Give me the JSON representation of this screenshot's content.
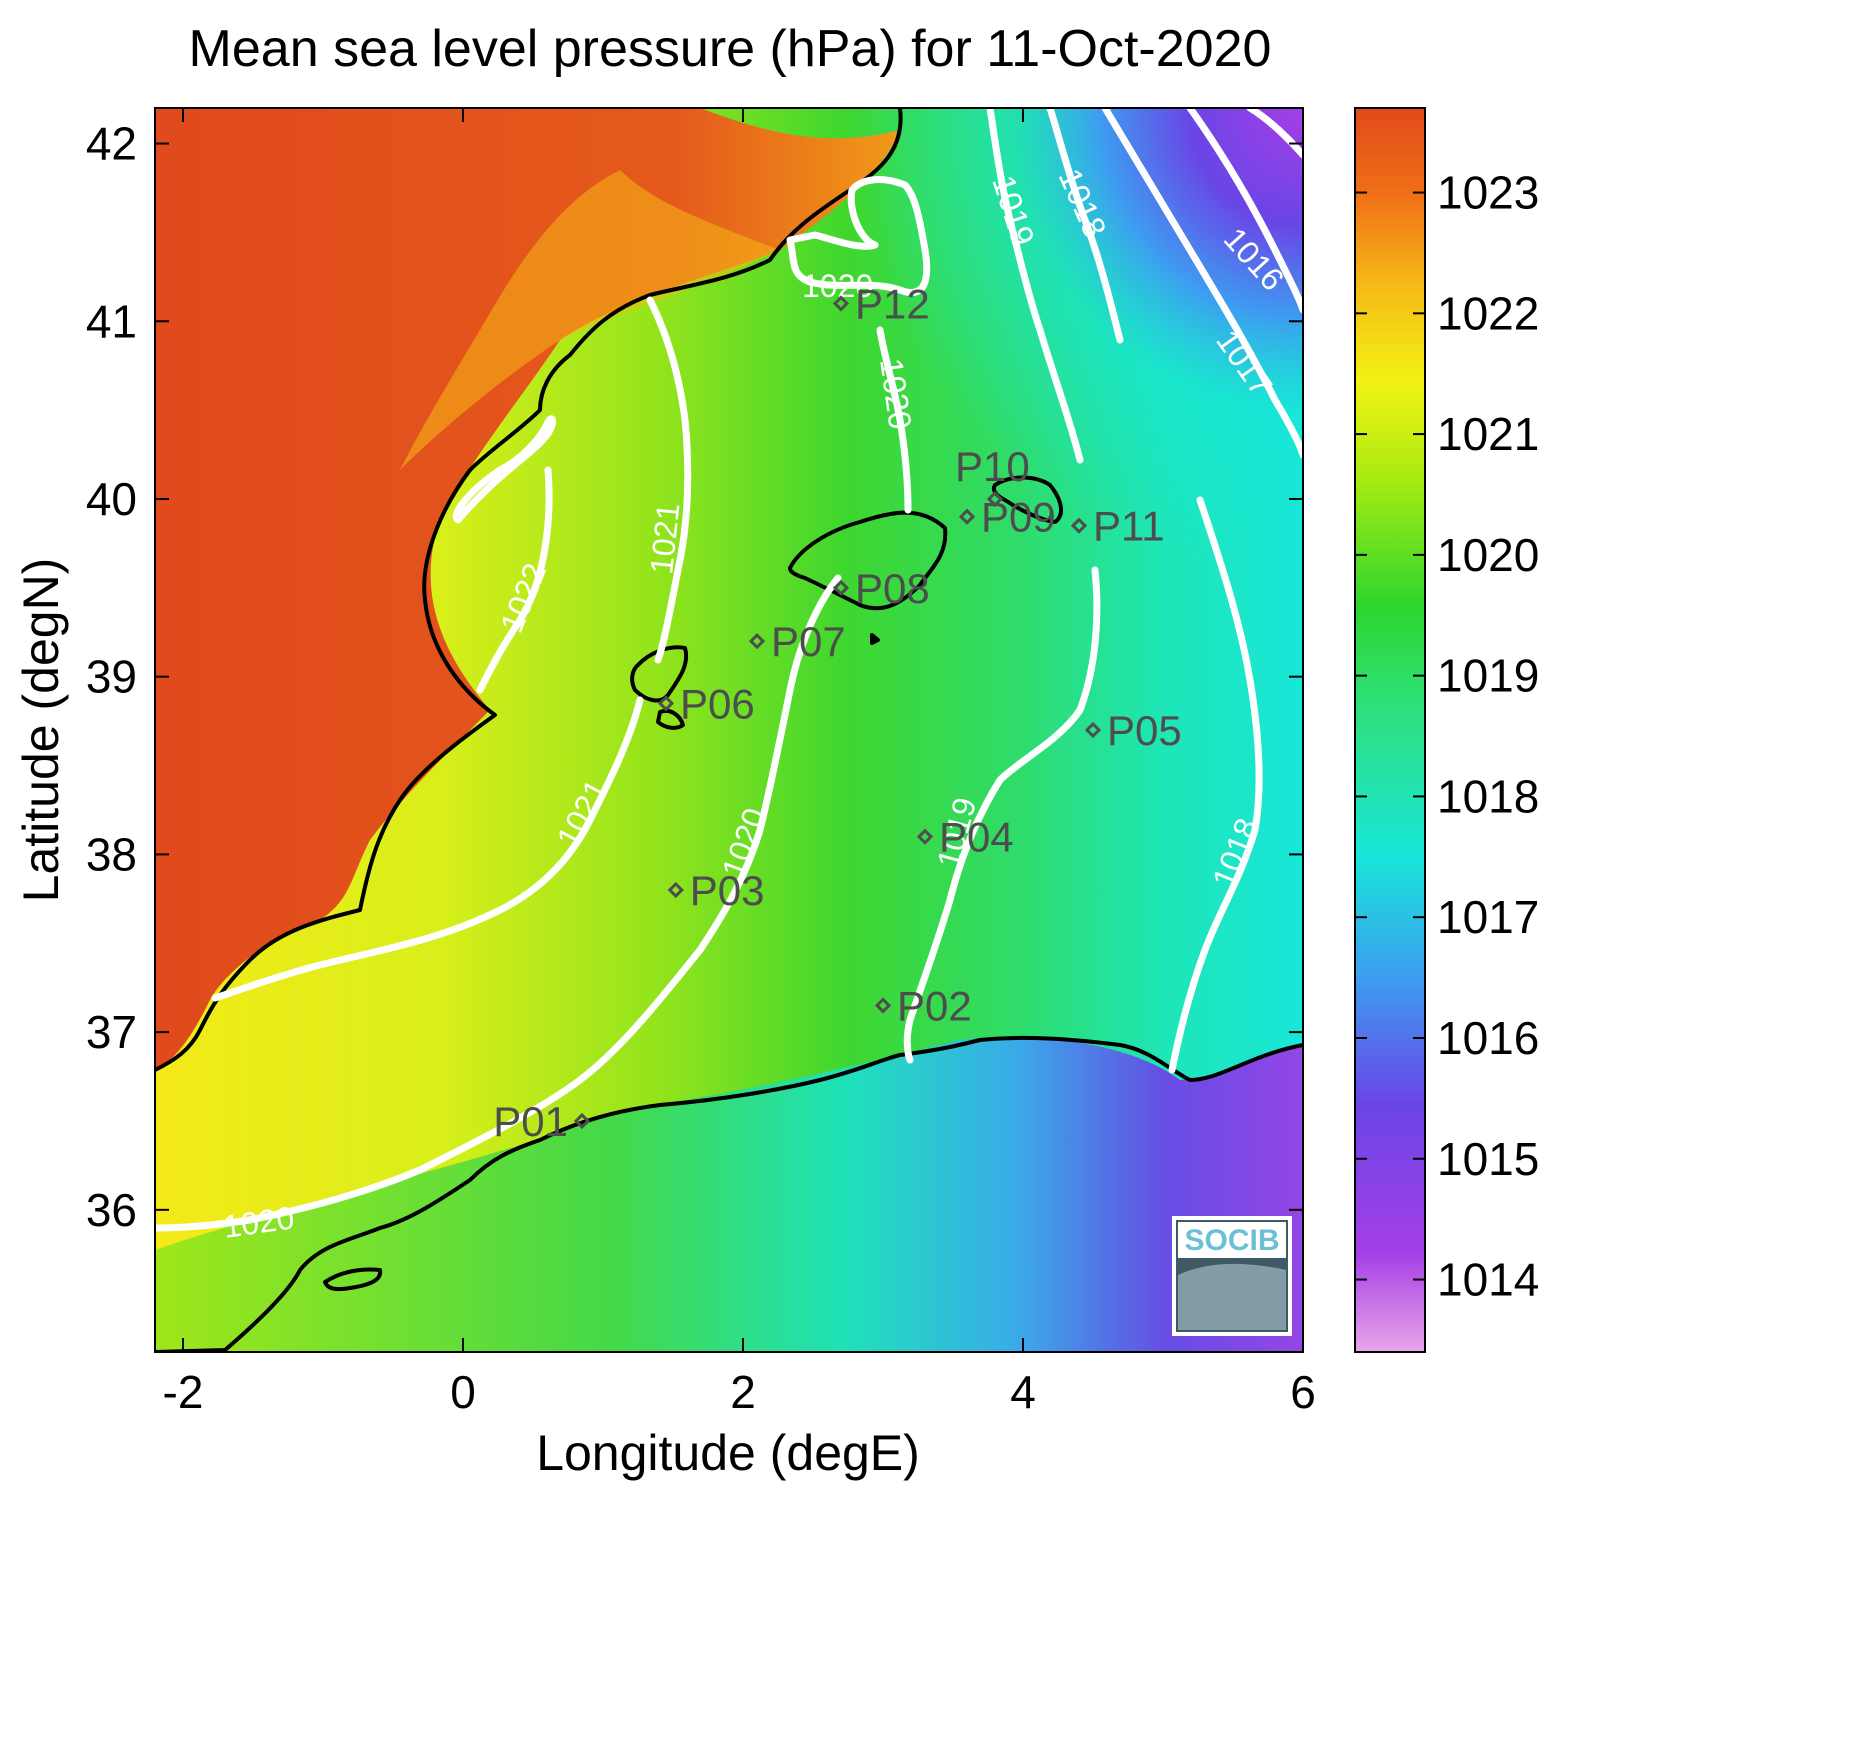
{
  "title": "Mean sea level pressure (hPa) for 11-Oct-2020",
  "axes": {
    "xlabel": "Longitude (degE)",
    "ylabel": "Latitude (degN)",
    "xlim": [
      -2.2,
      6.0
    ],
    "ylim": [
      35.2,
      42.2
    ],
    "xticks": [
      -2,
      0,
      2,
      4,
      6
    ],
    "yticks": [
      36,
      37,
      38,
      39,
      40,
      41,
      42
    ]
  },
  "colorbar": {
    "range": [
      1013.4,
      1023.7
    ],
    "ticks": [
      1014,
      1015,
      1016,
      1017,
      1018,
      1019,
      1020,
      1021,
      1022,
      1023
    ],
    "colors": [
      "#e9a6e9",
      "#a43fe6",
      "#6a45e6",
      "#3d9df0",
      "#18e6d8",
      "#2ee07a",
      "#2ed62e",
      "#a6ea12",
      "#f2f214",
      "#f6b816",
      "#f07016",
      "#e04a1c"
    ]
  },
  "colors": {
    "high_land": "#e04a1c",
    "coast_line": "#000000",
    "contour_line": "#ffffff",
    "station": "#4d4d4d"
  },
  "contours": [
    {
      "id": "c1022",
      "label": "1022"
    },
    {
      "id": "c1021a",
      "label": "1021"
    },
    {
      "id": "c1021b",
      "label": "1021"
    },
    {
      "id": "c1020a",
      "label": "1020"
    },
    {
      "id": "c1020b",
      "label": "1020"
    },
    {
      "id": "c1020c",
      "label": "1020"
    },
    {
      "id": "c1020d",
      "label": "1020"
    },
    {
      "id": "c1019a",
      "label": "1019"
    },
    {
      "id": "c1019b",
      "label": "1019"
    },
    {
      "id": "c1018a",
      "label": "1018"
    },
    {
      "id": "c1018b",
      "label": "1018"
    },
    {
      "id": "c1017",
      "label": "1017"
    },
    {
      "id": "c1016",
      "label": "1016"
    }
  ],
  "stations": [
    {
      "name": "P01",
      "lon": 0.85,
      "lat": 36.5
    },
    {
      "name": "P02",
      "lon": 3.0,
      "lat": 37.15
    },
    {
      "name": "P03",
      "lon": 1.52,
      "lat": 37.8
    },
    {
      "name": "P04",
      "lon": 3.3,
      "lat": 38.1
    },
    {
      "name": "P05",
      "lon": 4.5,
      "lat": 38.7
    },
    {
      "name": "P06",
      "lon": 1.45,
      "lat": 38.85
    },
    {
      "name": "P07",
      "lon": 2.1,
      "lat": 39.2
    },
    {
      "name": "P08",
      "lon": 2.7,
      "lat": 39.5
    },
    {
      "name": "P09",
      "lon": 3.6,
      "lat": 39.9
    },
    {
      "name": "P10",
      "lon": 3.8,
      "lat": 40.0
    },
    {
      "name": "P11",
      "lon": 4.4,
      "lat": 39.85
    },
    {
      "name": "P12",
      "lon": 2.7,
      "lat": 41.1
    }
  ],
  "logo": {
    "text": "SOCIB"
  }
}
